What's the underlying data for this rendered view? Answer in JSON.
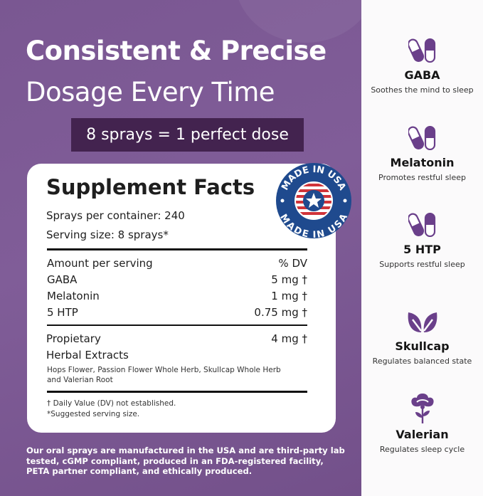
{
  "headline": {
    "line1": "Consistent & Precise",
    "line2": "Dosage Every Time",
    "banner": "8 sprays = 1 perfect dose"
  },
  "facts": {
    "title": "Supplement Facts",
    "sprays_per_container": "Sprays per container: 240",
    "serving_size": "Serving size: 8 sprays*",
    "header": {
      "label": "Amount per serving",
      "dv": "% DV"
    },
    "rows": [
      {
        "name": "GABA",
        "amount": "5 mg †"
      },
      {
        "name": "Melatonin",
        "amount": "1 mg †"
      },
      {
        "name": "5 HTP",
        "amount": "0.75 mg †"
      }
    ],
    "blend": {
      "name_line1": "Propietary",
      "name_line2": "Herbal Extracts",
      "amount": "4 mg †",
      "ingredients_line1": "Hops Flower, Passion Flower Whole Herb, Skullcap Whole Herb",
      "ingredients_line2": "and Valerian Root"
    },
    "footnote1": "† Daily Value (DV) not established.",
    "footnote2": "*Suggested serving size."
  },
  "badge": {
    "text": "MADE IN USA",
    "colors": {
      "blue": "#1f4a8e",
      "red": "#d0343a"
    }
  },
  "footer": "Our oral sprays are manufactured in the USA and are third-party lab tested, cGMP compliant, produced in an FDA-registered facility, PETA partner compliant, and ethically produced.",
  "ingredients": [
    {
      "name": "GABA",
      "desc": "Soothes the mind to sleep",
      "icon": "capsule-icon"
    },
    {
      "name": "Melatonin",
      "desc": "Promotes restful sleep",
      "icon": "capsule-icon"
    },
    {
      "name": "5 HTP",
      "desc": "Supports restful sleep",
      "icon": "capsule-icon"
    },
    {
      "name": "Skullcap",
      "desc": "Regulates balanced state",
      "icon": "leaves-icon"
    },
    {
      "name": "Valerian",
      "desc": "Regulates sleep cycle",
      "icon": "flower-icon"
    }
  ],
  "colors": {
    "accent": "#6a3f8a",
    "background": "#7a5792",
    "banner": "#43234f"
  }
}
